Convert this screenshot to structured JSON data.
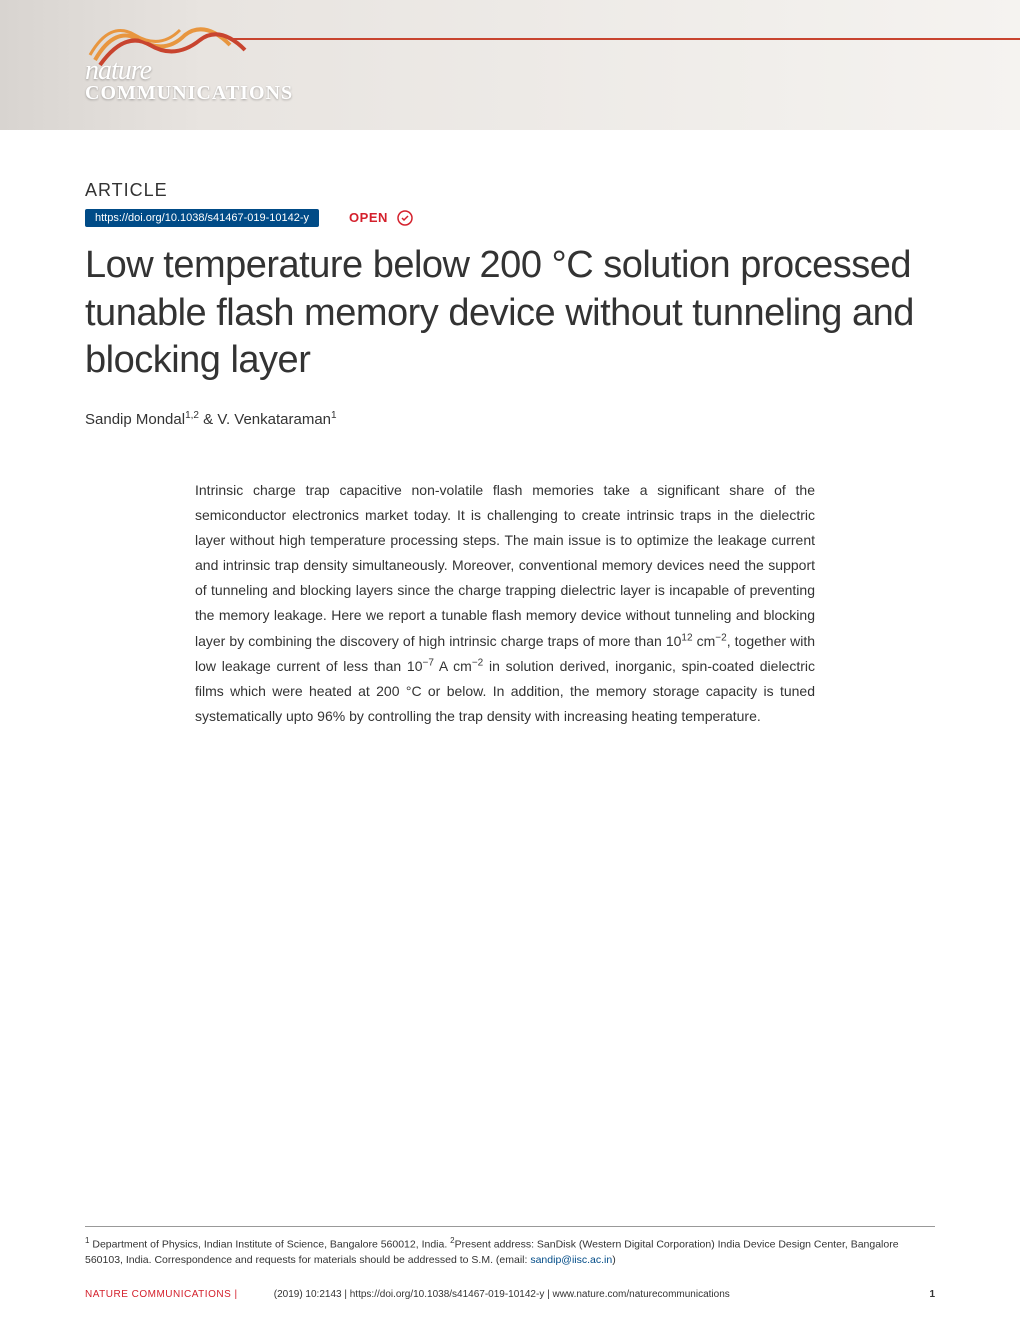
{
  "banner": {
    "logo_nature": "nature",
    "logo_comms": "COMMUNICATIONS",
    "wave_color_1": "#e8963f",
    "wave_color_2": "#c8442f",
    "background_gradient": [
      "#d8d4d0",
      "#e8e4e0",
      "#f5f3f0"
    ]
  },
  "article": {
    "label": "ARTICLE",
    "doi": "https://doi.org/10.1038/s41467-019-10142-y",
    "open_label": "OPEN",
    "title": "Low temperature below 200 °C solution processed tunable flash memory device without tunneling and blocking layer",
    "authors_html": "Sandip Mondal<sup>1,2</sup> & V. Venkataraman<sup>1</sup>"
  },
  "abstract": {
    "text_html": "Intrinsic charge trap capacitive non-volatile flash memories take a significant share of the semiconductor electronics market today. It is challenging to create intrinsic traps in the dielectric layer without high temperature processing steps. The main issue is to optimize the leakage current and intrinsic trap density simultaneously. Moreover, conventional memory devices need the support of tunneling and blocking layers since the charge trapping dielectric layer is incapable of preventing the memory leakage. Here we report a tunable flash memory device without tunneling and blocking layer by combining the discovery of high intrinsic charge traps of more than 10<sup>12</sup> cm<sup>−2</sup>, together with low leakage current of less than 10<sup>−7</sup> A cm<sup>−2</sup> in solution derived, inorganic, spin-coated dielectric films which were heated at 200 °C or below. In addition, the memory storage capacity is tuned systematically upto 96% by controlling the trap density with increasing heating temperature."
  },
  "affiliations": {
    "text_html": "<sup>1</sup> Department of Physics, Indian Institute of Science, Bangalore 560012, India. <sup>2</sup>Present address: SanDisk (Western Digital Corporation) India Device Design Center, Bangalore 560103, India. Correspondence and requests for materials should be addressed to S.M. (email: <span class=\"email-link\">sandip@iisc.ac.in</span>)"
  },
  "footer": {
    "journal": "NATURE COMMUNICATIONS |",
    "citation": "(2019) 10:2143 | https://doi.org/10.1038/s41467-019-10142-y | www.nature.com/naturecommunications",
    "page": "1"
  },
  "colors": {
    "doi_badge_bg": "#004b87",
    "open_label": "#d4202c",
    "journal_name": "#d4202c",
    "link": "#004b87",
    "text": "#333333"
  }
}
